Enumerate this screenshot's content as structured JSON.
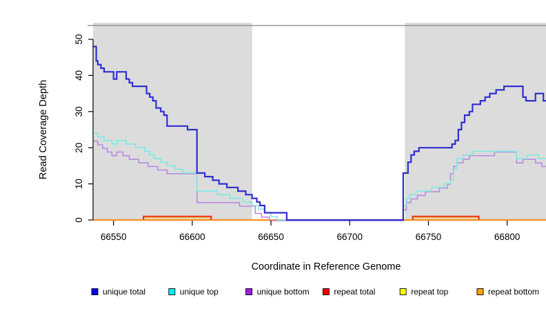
{
  "chart_data": {
    "type": "line",
    "subtype": "step-after-coverage-plot",
    "title": "",
    "xlabel": "Coordinate in Reference Genome",
    "ylabel": "Read Coverage Depth",
    "xlim": [
      66537,
      66833
    ],
    "ylim": [
      0,
      54
    ],
    "x_ticks": [
      66550,
      66600,
      66650,
      66700,
      66750,
      66800
    ],
    "y_ticks": [
      0,
      10,
      20,
      30,
      40,
      50
    ],
    "grid": false,
    "legend_position": "bottom",
    "shaded_regions": {
      "color": "#dcdcdc",
      "x_ranges": [
        [
          66537,
          66638
        ],
        [
          66735,
          66833
        ]
      ]
    },
    "draw_order": [
      "repeat bottom",
      "repeat top",
      "repeat total",
      "unique bottom",
      "unique top",
      "unique total"
    ],
    "series": [
      {
        "name": "unique total",
        "line_color": "#2e2ed2",
        "legend_color": "#0000e6",
        "line_width": 2.2,
        "segments": [
          [
            [
              66537,
              48
            ],
            [
              66539,
              44
            ],
            [
              66540,
              43
            ],
            [
              66542,
              42
            ],
            [
              66544,
              41
            ],
            [
              66550,
              39
            ],
            [
              66552,
              41
            ],
            [
              66558,
              39
            ],
            [
              66560,
              38
            ],
            [
              66562,
              37
            ],
            [
              66571,
              35
            ],
            [
              66573,
              34
            ],
            [
              66575,
              33
            ],
            [
              66577,
              31
            ],
            [
              66580,
              30
            ],
            [
              66582,
              29
            ],
            [
              66584,
              26
            ],
            [
              66597,
              25
            ],
            [
              66603,
              13
            ],
            [
              66608,
              12
            ],
            [
              66613,
              11
            ],
            [
              66617,
              10
            ],
            [
              66622,
              9
            ],
            [
              66629,
              8
            ],
            [
              66634,
              7
            ],
            [
              66638,
              6
            ],
            [
              66641,
              5
            ],
            [
              66643,
              4
            ],
            [
              66646,
              2
            ],
            [
              66660,
              0
            ],
            [
              66734,
              13
            ],
            [
              66737,
              16
            ],
            [
              66739,
              18
            ],
            [
              66741,
              19
            ],
            [
              66744,
              20
            ],
            [
              66765,
              21
            ],
            [
              66767,
              22
            ],
            [
              66769,
              25
            ],
            [
              66771,
              27
            ],
            [
              66773,
              29
            ],
            [
              66776,
              30
            ],
            [
              66778,
              32
            ],
            [
              66783,
              33
            ],
            [
              66786,
              34
            ],
            [
              66789,
              35
            ],
            [
              66793,
              36
            ],
            [
              66798,
              37
            ],
            [
              66810,
              34
            ],
            [
              66812,
              33
            ],
            [
              66818,
              35
            ],
            [
              66823,
              33
            ],
            [
              66827,
              32
            ],
            [
              66829,
              29
            ],
            [
              66833,
              29
            ]
          ]
        ]
      },
      {
        "name": "unique top",
        "line_color": "#7fe9e3",
        "legend_color": "#00eeee",
        "line_width": 1.6,
        "segments": [
          [
            [
              66537,
              24
            ],
            [
              66540,
              23
            ],
            [
              66544,
              22
            ],
            [
              66549,
              21
            ],
            [
              66552,
              22
            ],
            [
              66558,
              21
            ],
            [
              66564,
              20
            ],
            [
              66570,
              19
            ],
            [
              66573,
              18
            ],
            [
              66576,
              17
            ],
            [
              66580,
              16
            ],
            [
              66584,
              15
            ],
            [
              66589,
              14
            ],
            [
              66594,
              13
            ],
            [
              66603,
              8
            ],
            [
              66616,
              7
            ],
            [
              66624,
              6
            ],
            [
              66632,
              5
            ],
            [
              66638,
              4
            ],
            [
              66642,
              3
            ],
            [
              66646,
              2
            ],
            [
              66650,
              1
            ],
            [
              66654,
              0
            ],
            [
              66734,
              4
            ],
            [
              66736,
              6
            ],
            [
              66738,
              7
            ],
            [
              66742,
              8
            ],
            [
              66752,
              9
            ],
            [
              66760,
              10
            ],
            [
              66764,
              11
            ],
            [
              66766,
              14
            ],
            [
              66768,
              17
            ],
            [
              66772,
              18
            ],
            [
              66778,
              19
            ],
            [
              66806,
              17
            ],
            [
              66813,
              18
            ],
            [
              66820,
              17
            ],
            [
              66833,
              17
            ]
          ]
        ]
      },
      {
        "name": "unique bottom",
        "line_color": "#b98ae0",
        "legend_color": "#9d1fe0",
        "line_width": 1.6,
        "segments": [
          [
            [
              66537,
              22
            ],
            [
              66540,
              21
            ],
            [
              66543,
              20
            ],
            [
              66546,
              19
            ],
            [
              66549,
              18
            ],
            [
              66552,
              19
            ],
            [
              66556,
              18
            ],
            [
              66560,
              17
            ],
            [
              66566,
              16
            ],
            [
              66572,
              15
            ],
            [
              66578,
              14
            ],
            [
              66584,
              13
            ],
            [
              66603,
              5
            ],
            [
              66630,
              4
            ],
            [
              66640,
              2
            ],
            [
              66644,
              1
            ],
            [
              66649,
              0
            ],
            [
              66734,
              3
            ],
            [
              66736,
              5
            ],
            [
              66739,
              6
            ],
            [
              66743,
              7
            ],
            [
              66748,
              8
            ],
            [
              66757,
              9
            ],
            [
              66762,
              10
            ],
            [
              66764,
              13
            ],
            [
              66766,
              15
            ],
            [
              66768,
              16
            ],
            [
              66772,
              17
            ],
            [
              66776,
              18
            ],
            [
              66792,
              19
            ],
            [
              66806,
              16
            ],
            [
              66810,
              17
            ],
            [
              66818,
              16
            ],
            [
              66822,
              15
            ],
            [
              66826,
              14
            ],
            [
              66829,
              13
            ],
            [
              66833,
              13
            ]
          ]
        ]
      },
      {
        "name": "repeat total",
        "line_color": "#ee3524",
        "legend_color": "#ee0000",
        "line_width": 2.2,
        "segments": [
          [
            [
              66569,
              0
            ],
            [
              66569,
              1
            ],
            [
              66612,
              1
            ],
            [
              66612,
              0
            ]
          ],
          [
            [
              66740,
              0
            ],
            [
              66740,
              1
            ],
            [
              66782,
              1
            ],
            [
              66782,
              0
            ]
          ]
        ]
      },
      {
        "name": "repeat top",
        "line_color": "#eec95a",
        "legend_color": "#ffff00",
        "line_width": 2.2,
        "segments": [
          [
            [
              66569,
              0
            ],
            [
              66569,
              1
            ],
            [
              66612,
              1
            ],
            [
              66612,
              0
            ]
          ],
          [
            [
              66740,
              0
            ],
            [
              66740,
              1
            ],
            [
              66782,
              1
            ],
            [
              66782,
              0
            ]
          ]
        ]
      },
      {
        "name": "repeat bottom",
        "line_color": "#ff8d21",
        "legend_color": "#ffa200",
        "line_width": 2.2,
        "segments": [
          [
            [
              66537,
              0
            ],
            [
              66833,
              0
            ]
          ]
        ]
      }
    ],
    "legend": [
      {
        "label": "unique total",
        "color": "#0000e6"
      },
      {
        "label": "unique top",
        "color": "#00eeee"
      },
      {
        "label": "unique bottom",
        "color": "#9d1fe0"
      },
      {
        "label": "repeat total",
        "color": "#ee0000"
      },
      {
        "label": "repeat top",
        "color": "#ffff00"
      },
      {
        "label": "repeat bottom",
        "color": "#ffa200"
      }
    ]
  }
}
